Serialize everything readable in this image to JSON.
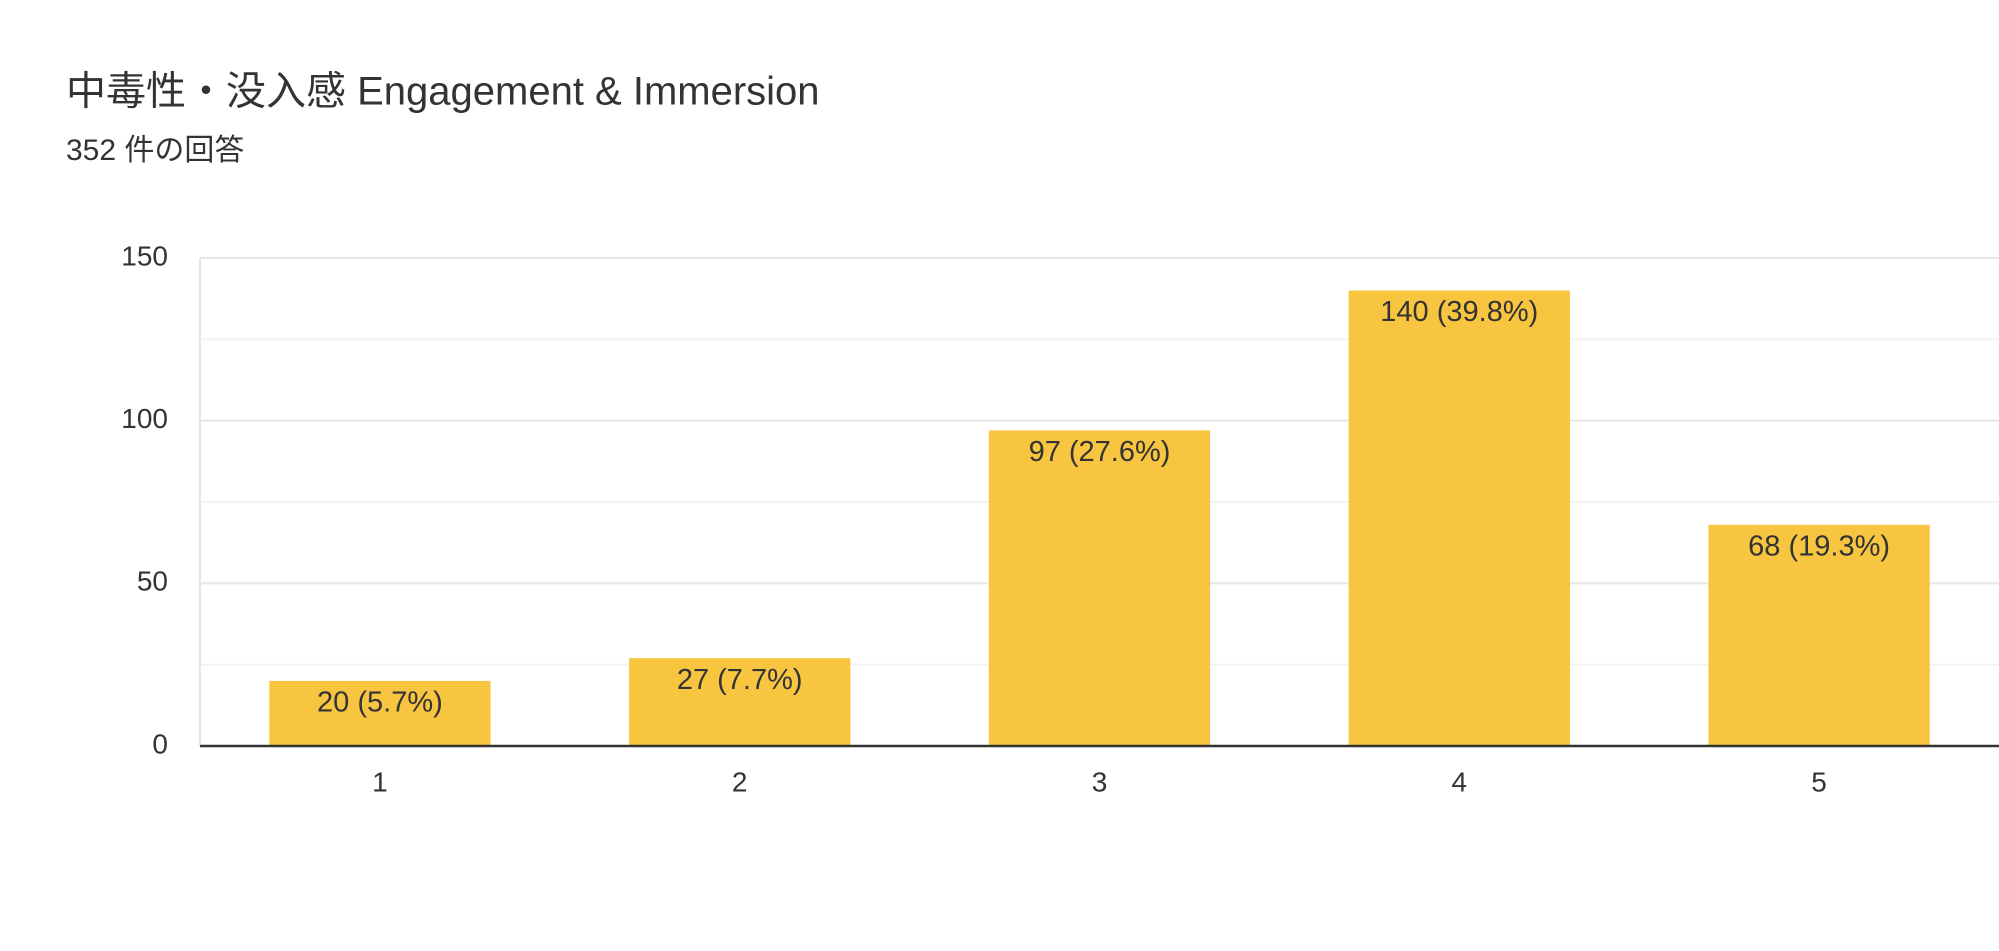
{
  "chart_data": {
    "type": "bar",
    "title": "中毒性・没入感 Engagement & Immersion",
    "subtitle": "352 件の回答",
    "categories": [
      "1",
      "2",
      "3",
      "4",
      "5"
    ],
    "values": [
      20,
      27,
      97,
      140,
      68
    ],
    "value_labels": [
      "20 (5.7%)",
      "27 (7.7%)",
      "97 (27.6%)",
      "140 (39.8%)",
      "68 (19.3%)"
    ],
    "color": "#f7c53f",
    "ylim": [
      0,
      150
    ],
    "yticks": [
      0,
      50,
      100,
      150
    ],
    "minor_yticks": [
      25,
      75,
      125
    ],
    "grid": true
  }
}
